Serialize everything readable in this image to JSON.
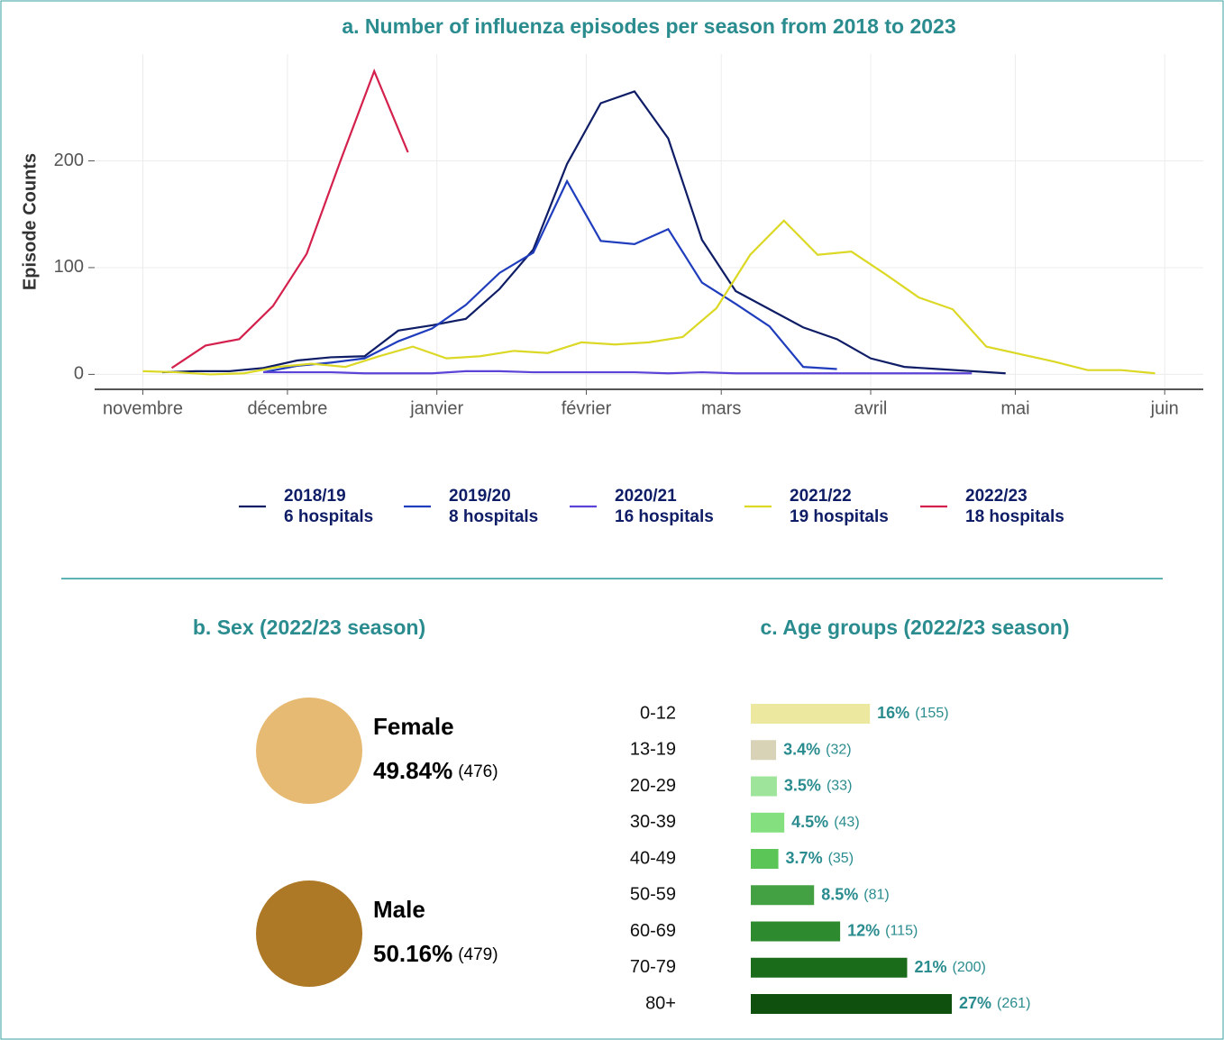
{
  "chart_data": [
    {
      "type": "line",
      "title": "a. Number of influenza episodes per season from 2018 to 2023",
      "y_label": "Episode Counts",
      "xlim": [
        -10,
        220
      ],
      "xticks": [
        {
          "value": 0,
          "label": "novembre"
        },
        {
          "value": 30,
          "label": "décembre"
        },
        {
          "value": 61,
          "label": "janvier"
        },
        {
          "value": 92,
          "label": "février"
        },
        {
          "value": 120,
          "label": "mars"
        },
        {
          "value": 151,
          "label": "avril"
        },
        {
          "value": 181,
          "label": "mai"
        },
        {
          "value": 212,
          "label": "juin"
        }
      ],
      "ylim": [
        -14,
        300
      ],
      "yticks": [
        0,
        100,
        200
      ],
      "grid": true,
      "series": [
        {
          "name": "2018/19",
          "hospitals": "6 hospitals",
          "color": "#0e1d66",
          "x": [
            4,
            11,
            18,
            25,
            32,
            39,
            46,
            53,
            60,
            67,
            74,
            81,
            88,
            95,
            102,
            109,
            116,
            123,
            130,
            137,
            144,
            151,
            158,
            165,
            172,
            179
          ],
          "values": [
            2,
            3,
            3,
            6,
            13,
            16,
            17,
            41,
            46,
            52,
            80,
            117,
            197,
            254,
            265,
            221,
            126,
            78,
            61,
            44,
            33,
            15,
            7,
            5,
            3,
            1
          ]
        },
        {
          "name": "2019/20",
          "hospitals": "8 hospitals",
          "color": "#1f3dbd",
          "x": [
            25,
            32,
            39,
            46,
            53,
            60,
            67,
            74,
            81,
            88,
            95,
            102,
            109,
            116,
            123,
            130,
            137,
            144
          ],
          "values": [
            2,
            8,
            11,
            15,
            31,
            43,
            65,
            95,
            114,
            181,
            125,
            122,
            136,
            86,
            66,
            45,
            7,
            5
          ]
        },
        {
          "name": "2020/21",
          "hospitals": "16 hospitals",
          "color": "#5a43d6",
          "x": [
            25,
            32,
            39,
            46,
            53,
            60,
            67,
            74,
            81,
            88,
            95,
            102,
            109,
            116,
            123,
            130,
            137,
            144,
            151,
            158,
            165,
            172
          ],
          "values": [
            2,
            2,
            2,
            1,
            1,
            1,
            3,
            3,
            2,
            2,
            2,
            2,
            1,
            2,
            1,
            1,
            1,
            1,
            1,
            1,
            1,
            1
          ]
        },
        {
          "name": "2021/22",
          "hospitals": "19 hospitals",
          "color": "#dcd826",
          "x": [
            0,
            7,
            14,
            21,
            28,
            35,
            42,
            49,
            56,
            63,
            70,
            77,
            84,
            91,
            98,
            105,
            112,
            119,
            126,
            133,
            140,
            147,
            154,
            161,
            168,
            175,
            182,
            189,
            196,
            203,
            210
          ],
          "values": [
            3,
            2,
            0,
            1,
            7,
            10,
            7,
            17,
            26,
            15,
            17,
            22,
            20,
            30,
            28,
            30,
            35,
            62,
            112,
            144,
            112,
            115,
            94,
            72,
            61,
            26,
            19,
            12,
            4,
            4,
            1
          ]
        },
        {
          "name": "2022/23",
          "hospitals": "18 hospitals",
          "color": "#d4204c",
          "x": [
            6,
            13,
            20,
            27,
            34,
            41,
            48,
            55
          ],
          "values": [
            6,
            27,
            33,
            64,
            113,
            200,
            284,
            208
          ]
        }
      ]
    },
    {
      "type": "circles",
      "title": "b. Sex (2022/23 season)",
      "categories": [
        "Female",
        "Male"
      ],
      "values": [
        49.84,
        50.16
      ],
      "value_labels": [
        "49.84%",
        "50.16%"
      ],
      "counts": [
        476,
        479
      ],
      "count_labels": [
        "(476)",
        "(479)"
      ],
      "colors": [
        "#e6ba73",
        "#ad7926"
      ]
    },
    {
      "type": "hbar",
      "title": "c. Age groups (2022/23 season)",
      "categories": [
        "0-12",
        "13-19",
        "20-29",
        "30-39",
        "40-49",
        "50-59",
        "60-69",
        "70-79",
        "80+"
      ],
      "values": [
        16,
        3.4,
        3.5,
        4.5,
        3.7,
        8.5,
        12,
        21,
        27
      ],
      "value_labels": [
        "16%",
        "3.4%",
        "3.5%",
        "4.5%",
        "3.7%",
        "8.5%",
        "12%",
        "21%",
        "27%"
      ],
      "counts": [
        155,
        32,
        33,
        43,
        35,
        81,
        115,
        200,
        261
      ],
      "count_labels": [
        "(155)",
        "(32)",
        "(33)",
        "(43)",
        "(35)",
        "(81)",
        "(115)",
        "(200)",
        "(261)"
      ],
      "colors": [
        "#ece8a0",
        "#d8d3b6",
        "#9ee49a",
        "#84e07e",
        "#5cc558",
        "#43a043",
        "#2e8a2e",
        "#1a6b1a",
        "#0f500f"
      ]
    }
  ]
}
